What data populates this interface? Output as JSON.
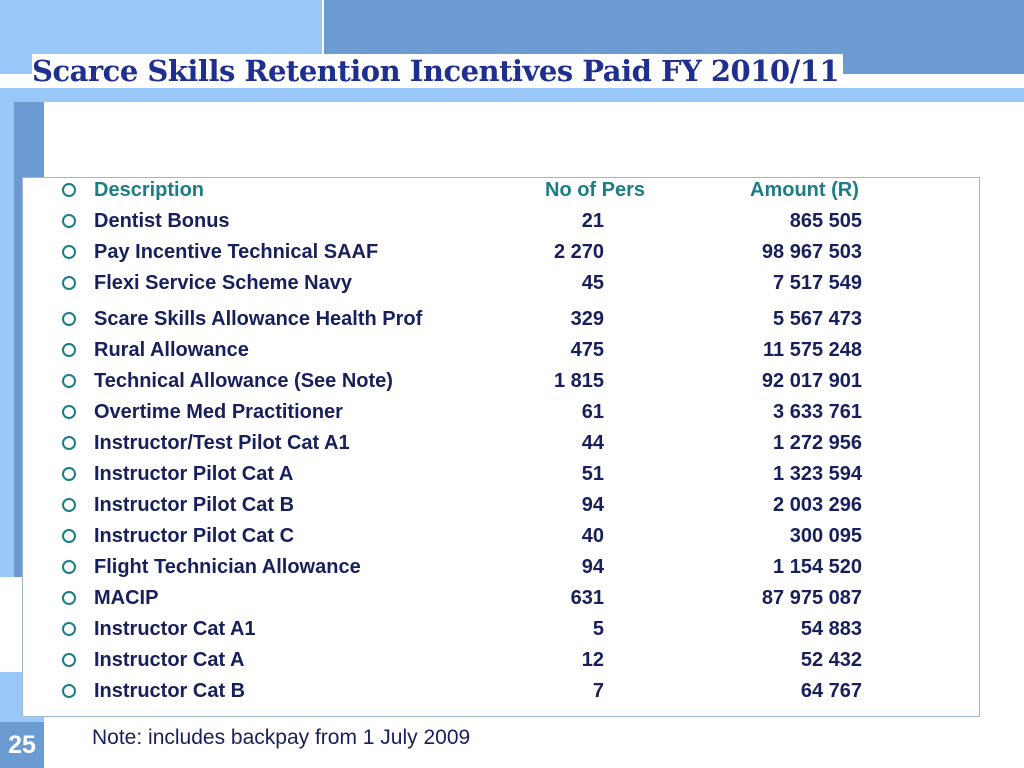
{
  "slide": {
    "title": "Scarce Skills Retention Incentives Paid FY 2010/11",
    "number": "25",
    "note": "Note: includes backpay from 1 July 2009"
  },
  "table": {
    "headers": {
      "description": "Description",
      "no_of_pers": "No of Pers",
      "amount": "Amount (R)"
    },
    "rows": [
      {
        "description": "Dentist Bonus",
        "no_of_pers": "21",
        "amount": "865 505"
      },
      {
        "description": "Pay Incentive Technical SAAF",
        "no_of_pers": "2 270",
        "amount": "98 967 503"
      },
      {
        "description": "Flexi Service Scheme Navy",
        "no_of_pers": "45",
        "amount": "7 517 549"
      },
      {
        "description": "Scare Skills Allowance Health Prof",
        "no_of_pers": "329",
        "amount": "5 567 473"
      },
      {
        "description": "Rural Allowance",
        "no_of_pers": "475",
        "amount": "11 575 248"
      },
      {
        "description": "Technical Allowance (See Note)",
        "no_of_pers": "1 815",
        "amount": "92 017 901"
      },
      {
        "description": "Overtime Med Practitioner",
        "no_of_pers": "61",
        "amount": "3 633 761"
      },
      {
        "description": "Instructor/Test Pilot Cat A1",
        "no_of_pers": "44",
        "amount": "1 272 956"
      },
      {
        "description": "Instructor Pilot Cat A",
        "no_of_pers": "51",
        "amount": "1 323 594"
      },
      {
        "description": "Instructor Pilot Cat B",
        "no_of_pers": "94",
        "amount": "2 003 296"
      },
      {
        "description": "Instructor Pilot Cat C",
        "no_of_pers": "40",
        "amount": "300 095"
      },
      {
        "description": "Flight Technician Allowance",
        "no_of_pers": "94",
        "amount": "1 154 520"
      },
      {
        "description": "MACIP",
        "no_of_pers": "631",
        "amount": "87 975 087"
      },
      {
        "description": "Instructor Cat A1",
        "no_of_pers": "5",
        "amount": "54 883"
      },
      {
        "description": "Instructor Cat A",
        "no_of_pers": "12",
        "amount": "52 432"
      },
      {
        "description": "Instructor Cat B",
        "no_of_pers": "7",
        "amount": "64 767"
      }
    ]
  },
  "colors": {
    "title": "#1f2f8f",
    "header_text": "#1c7d85",
    "body_text": "#17205a",
    "accent_light": "#99c8f8",
    "accent_dark": "#6b9bd0"
  }
}
